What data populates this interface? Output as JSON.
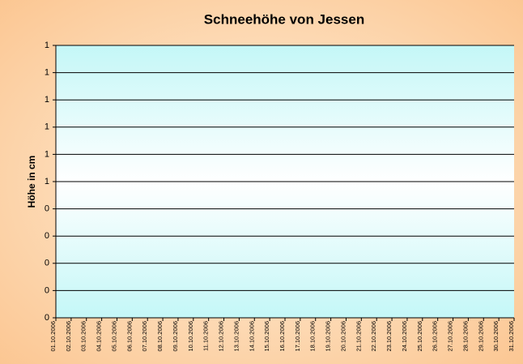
{
  "chart_data": {
    "type": "line",
    "title": "Schneehöhe von Jessen",
    "y_label": "Höhe in cm",
    "categories": [
      "01.10.2006",
      "02.10.2006",
      "03.10.2006",
      "04.10.2006",
      "05.10.2006",
      "06.10.2006",
      "07.10.2006",
      "08.10.2006",
      "09.10.2006",
      "10.10.2006",
      "11.10.2006",
      "12.10.2006",
      "13.10.2006",
      "14.10.2006",
      "15.10.2006",
      "16.10.2006",
      "17.10.2006",
      "18.10.2006",
      "19.10.2006",
      "20.10.2006",
      "21.10.2006",
      "22.10.2006",
      "23.10.2006",
      "24.10.2006",
      "25.10.2006",
      "26.10.2006",
      "27.10.2006",
      "28.10.2006",
      "29.10.2006",
      "30.10.2006",
      "31.10.2006"
    ],
    "ylim": [
      0,
      1
    ],
    "yticks": [
      0,
      {
        "value": 0.1,
        "label": "0"
      },
      {
        "value": 0.2,
        "label": "0"
      },
      {
        "value": 0.3,
        "label": "0"
      },
      {
        "value": 0.4,
        "label": "0"
      },
      {
        "value": 0.5,
        "label": "1"
      },
      {
        "value": 0.6,
        "label": "1"
      },
      {
        "value": 0.7,
        "label": "1"
      },
      {
        "value": 0.8,
        "label": "1"
      },
      {
        "value": 0.9,
        "label": "1"
      },
      1
    ],
    "grid": true
  }
}
